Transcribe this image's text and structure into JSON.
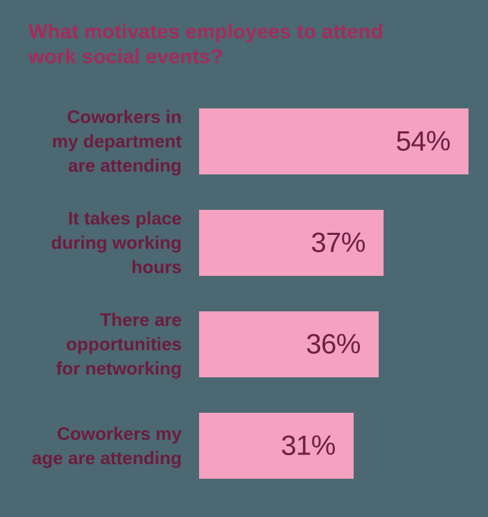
{
  "title": "What motivates employees to attend\nwork social events?",
  "chart_data": {
    "type": "bar",
    "orientation": "horizontal",
    "title": "What motivates employees to attend work social events?",
    "categories": [
      "Coworkers in\nmy department\nare attending",
      "It takes place\nduring working\nhours",
      "There are\nopportunities\nfor networking",
      "Coworkers my\nage are attending"
    ],
    "values": [
      54,
      37,
      36,
      31
    ],
    "value_labels": [
      "54%",
      "37%",
      "36%",
      "31%"
    ],
    "unit": "%",
    "xlim": [
      0,
      57.7
    ],
    "grid": false,
    "legend": "none",
    "colors": {
      "background": "#4C6872",
      "bar": "#F4A2BF",
      "title_text": "#A72A5B",
      "category_text": "#6E1B3D",
      "value_text": "#6B2145"
    }
  }
}
